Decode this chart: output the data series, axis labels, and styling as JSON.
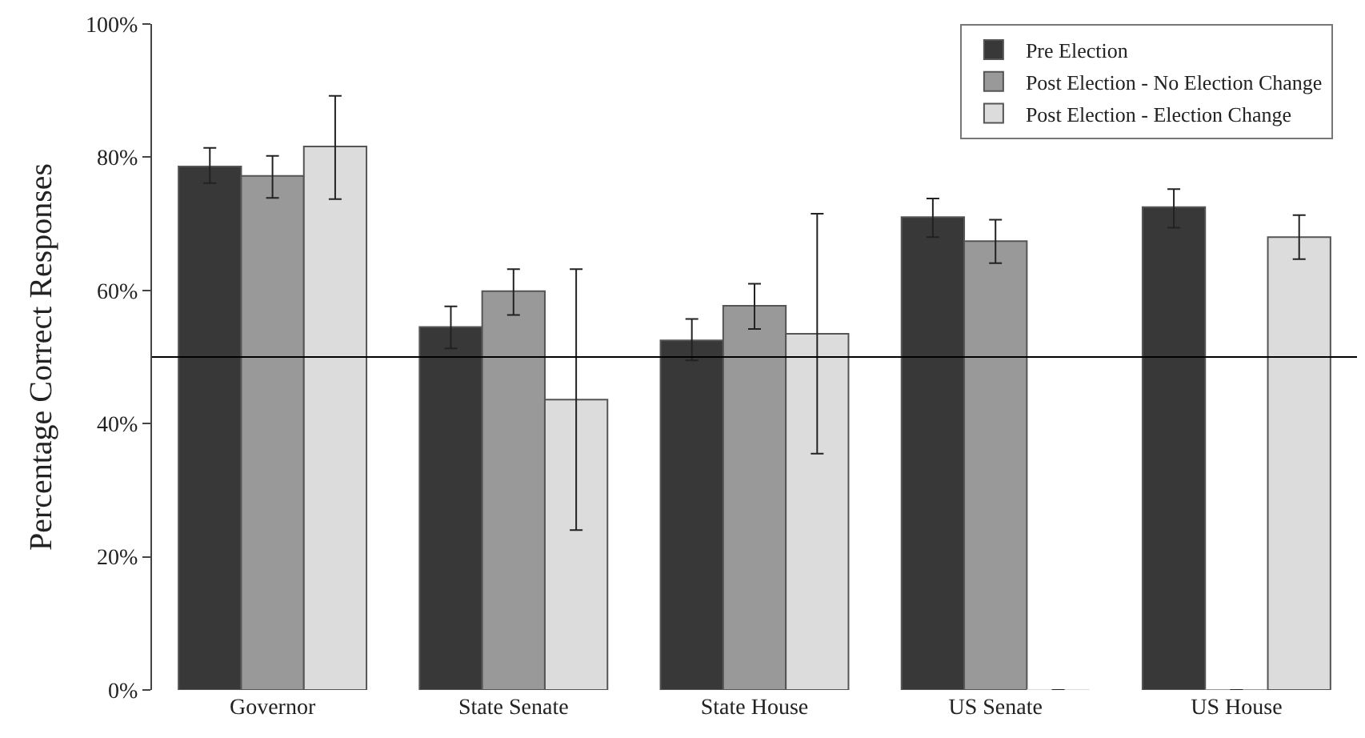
{
  "chart_data": {
    "type": "bar",
    "ylabel": "Percentage Correct Responses",
    "categories": [
      "Governor",
      "State Senate",
      "State House",
      "US Senate",
      "US House"
    ],
    "series": [
      {
        "name": "Pre Election",
        "color": "#383838",
        "values": [
          78.6,
          54.5,
          52.5,
          71.0,
          72.5
        ],
        "errors": [
          [
            76.1,
            81.4
          ],
          [
            51.3,
            57.6
          ],
          [
            49.5,
            55.7
          ],
          [
            68.0,
            73.8
          ],
          [
            69.4,
            75.2
          ]
        ]
      },
      {
        "name": "Post Election - No Election Change",
        "color": "#999999",
        "values": [
          77.2,
          59.9,
          57.7,
          67.4,
          0
        ],
        "errors": [
          [
            73.9,
            80.2
          ],
          [
            56.3,
            63.2
          ],
          [
            54.2,
            61.0
          ],
          [
            64.1,
            70.6
          ],
          null
        ]
      },
      {
        "name": "Post Election - Election Change",
        "color": "#dcdcdc",
        "values": [
          81.6,
          43.6,
          53.5,
          0,
          68.0
        ],
        "errors": [
          [
            73.7,
            89.2
          ],
          [
            24.0,
            63.2
          ],
          [
            35.5,
            71.5
          ],
          null,
          [
            64.7,
            71.3
          ]
        ]
      }
    ],
    "ylim": [
      0,
      100
    ],
    "yticks": [
      {
        "value": 0,
        "label": "0%"
      },
      {
        "value": 20,
        "label": "20%"
      },
      {
        "value": 40,
        "label": "40%"
      },
      {
        "value": 60,
        "label": "60%"
      },
      {
        "value": 80,
        "label": "80%"
      },
      {
        "value": 100,
        "label": "100%"
      }
    ],
    "ref_lines": [
      {
        "axis": "y",
        "value": 50,
        "color": "#000000"
      }
    ],
    "legend": "top right"
  }
}
